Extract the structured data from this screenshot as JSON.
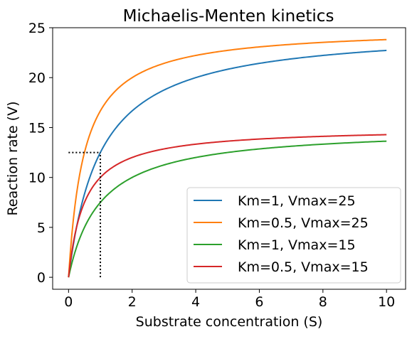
{
  "chart_data": {
    "type": "line",
    "title": "Michaelis-Menten kinetics",
    "xlabel": "Substrate concentration (S)",
    "ylabel": "Reaction rate (V)",
    "xlim": [
      -0.5,
      10.6
    ],
    "ylim": [
      -1.2,
      25
    ],
    "xticks": [
      0,
      2,
      4,
      6,
      8,
      10
    ],
    "yticks": [
      0,
      5,
      10,
      15,
      20,
      25
    ],
    "grid": false,
    "legend_position": "lower-right",
    "series": [
      {
        "name": "Km=1, Vmax=25",
        "km": 1,
        "vmax": 25,
        "color": "#1f77b4",
        "x": [
          0,
          0.1,
          0.2,
          0.3,
          0.4,
          0.5,
          0.75,
          1,
          1.5,
          2,
          2.5,
          3,
          4,
          5,
          6,
          7,
          8,
          9,
          10
        ],
        "values": [
          0,
          2.27,
          4.17,
          5.77,
          7.14,
          8.33,
          10.71,
          12.5,
          15.0,
          16.67,
          17.86,
          18.75,
          20.0,
          20.83,
          21.43,
          21.88,
          22.22,
          22.5,
          22.73
        ]
      },
      {
        "name": "Km=0.5, Vmax=25",
        "km": 0.5,
        "vmax": 25,
        "color": "#ff7f0e",
        "x": [
          0,
          0.1,
          0.2,
          0.3,
          0.4,
          0.5,
          0.75,
          1,
          1.5,
          2,
          2.5,
          3,
          4,
          5,
          6,
          7,
          8,
          9,
          10
        ],
        "values": [
          0,
          4.17,
          7.14,
          9.38,
          11.11,
          12.5,
          15.0,
          16.67,
          18.75,
          20.0,
          20.83,
          21.43,
          22.22,
          22.73,
          23.08,
          23.33,
          23.53,
          23.68,
          23.81
        ]
      },
      {
        "name": "Km=1, Vmax=15",
        "km": 1,
        "vmax": 15,
        "color": "#2ca02c",
        "x": [
          0,
          0.1,
          0.2,
          0.3,
          0.4,
          0.5,
          0.75,
          1,
          1.5,
          2,
          2.5,
          3,
          4,
          5,
          6,
          7,
          8,
          9,
          10
        ],
        "values": [
          0,
          1.36,
          2.5,
          3.46,
          4.29,
          5.0,
          6.43,
          7.5,
          9.0,
          10.0,
          10.71,
          11.25,
          12.0,
          12.5,
          12.86,
          13.13,
          13.33,
          13.5,
          13.64
        ]
      },
      {
        "name": "Km=0.5, Vmax=15",
        "km": 0.5,
        "vmax": 15,
        "color": "#d62728",
        "x": [
          0,
          0.1,
          0.2,
          0.3,
          0.4,
          0.5,
          0.75,
          1,
          1.5,
          2,
          2.5,
          3,
          4,
          5,
          6,
          7,
          8,
          9,
          10
        ],
        "values": [
          0,
          2.5,
          4.29,
          5.63,
          6.67,
          7.5,
          9.0,
          10.0,
          11.25,
          12.0,
          12.5,
          12.86,
          13.33,
          13.64,
          13.85,
          14.0,
          14.12,
          14.21,
          14.29
        ]
      }
    ],
    "annotations": [
      {
        "type": "dotted-line",
        "from": [
          0,
          12.5
        ],
        "to": [
          1,
          12.5
        ],
        "color": "#000000"
      },
      {
        "type": "dotted-line",
        "from": [
          1,
          0
        ],
        "to": [
          1,
          12.5
        ],
        "color": "#000000"
      }
    ]
  }
}
